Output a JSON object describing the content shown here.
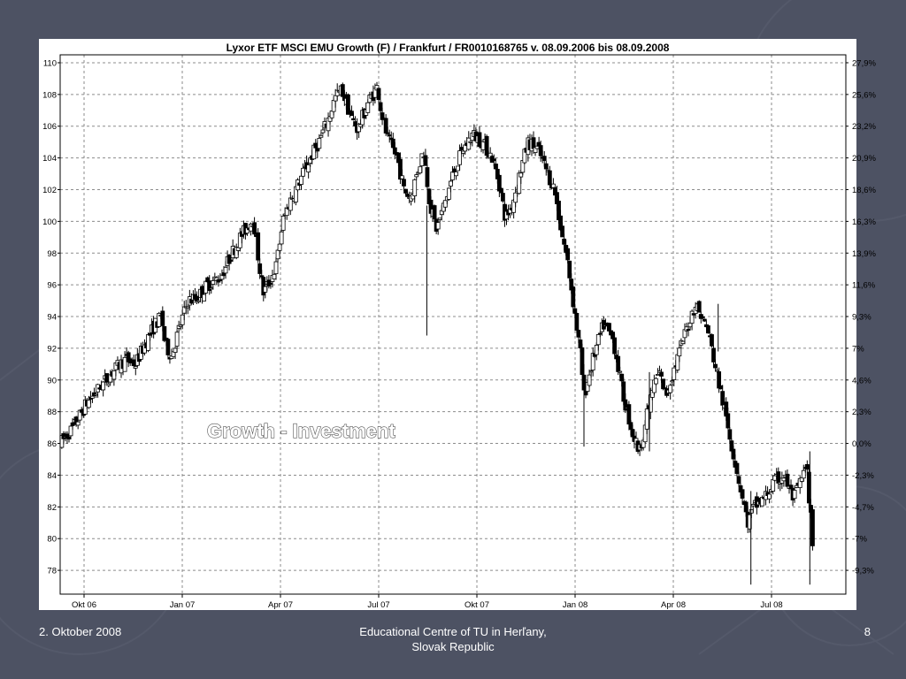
{
  "slide": {
    "footer_date": "2. Oktober 2008",
    "footer_center_line1": "Educational Centre of TU in Herľany,",
    "footer_center_line2": "Slovak Republic",
    "page_number": "8",
    "background_color": "#4d5263",
    "decoration": "faint arrow-and-circle pattern on the slide background"
  },
  "chart_data": {
    "type": "candlestick",
    "title": "Lyxor ETF MSCI EMU Growth (F) / Frankfurt / FR0010168765 v. 08.09.2006 bis 08.09.2008",
    "overlay_text": "Growth - Investment",
    "x_tick_labels": [
      "Okt 06",
      "Jan 07",
      "Apr 07",
      "Jul 07",
      "Okt 07",
      "Jan 08",
      "Apr 08",
      "Jul 08"
    ],
    "x_ticks_months_from_start": [
      0.73,
      3.73,
      6.73,
      9.73,
      12.73,
      15.73,
      18.73,
      21.73
    ],
    "x_range_months": [
      0,
      24
    ],
    "y_left_ticks": [
      110,
      108,
      106,
      104,
      102,
      100,
      98,
      96,
      94,
      92,
      90,
      88,
      86,
      84,
      82,
      80,
      78
    ],
    "y_left_range": [
      76.5,
      110.5
    ],
    "y_right_ticks": [
      "27,9%",
      "25,6%",
      "23,2%",
      "20,9%",
      "18,6%",
      "16,3%",
      "13,9%",
      "11,6%",
      "9,3%",
      "7%",
      "4,6%",
      "2,3%",
      "0,0%",
      "-2,3%",
      "-4,7%",
      "-7%",
      "-9,3%"
    ],
    "grid": true,
    "up_color": "#ffffff",
    "down_color": "#000000",
    "price_path": [
      [
        0.0,
        86.0
      ],
      [
        0.4,
        87.0
      ],
      [
        0.8,
        88.5
      ],
      [
        1.2,
        89.5
      ],
      [
        1.6,
        90.5
      ],
      [
        2.0,
        91.3
      ],
      [
        2.3,
        91.0
      ],
      [
        2.6,
        92.3
      ],
      [
        2.9,
        93.5
      ],
      [
        3.1,
        94.0
      ],
      [
        3.2,
        92.3
      ],
      [
        3.4,
        91.5
      ],
      [
        3.6,
        93.0
      ],
      [
        3.9,
        95.0
      ],
      [
        4.2,
        95.2
      ],
      [
        4.5,
        96.0
      ],
      [
        4.9,
        96.5
      ],
      [
        5.2,
        97.8
      ],
      [
        5.5,
        99.0
      ],
      [
        5.9,
        100.2
      ],
      [
        6.0,
        98.5
      ],
      [
        6.2,
        95.5
      ],
      [
        6.4,
        96.2
      ],
      [
        6.6,
        97.2
      ],
      [
        6.8,
        100.0
      ],
      [
        7.0,
        101.2
      ],
      [
        7.3,
        102.5
      ],
      [
        7.6,
        103.8
      ],
      [
        7.9,
        105.0
      ],
      [
        8.2,
        106.5
      ],
      [
        8.4,
        107.8
      ],
      [
        8.6,
        108.3
      ],
      [
        8.9,
        106.5
      ],
      [
        9.1,
        105.8
      ],
      [
        9.4,
        107.5
      ],
      [
        9.7,
        108.5
      ],
      [
        9.8,
        107.0
      ],
      [
        10.0,
        105.2
      ],
      [
        10.3,
        104.0
      ],
      [
        10.5,
        102.0
      ],
      [
        10.7,
        101.5
      ],
      [
        10.9,
        103.0
      ],
      [
        11.1,
        104.5
      ],
      [
        11.3,
        101.0
      ],
      [
        11.5,
        99.5
      ],
      [
        11.8,
        101.5
      ],
      [
        12.0,
        103.0
      ],
      [
        12.3,
        104.5
      ],
      [
        12.6,
        105.5
      ],
      [
        12.9,
        105.0
      ],
      [
        13.2,
        104.0
      ],
      [
        13.4,
        102.5
      ],
      [
        13.6,
        100.2
      ],
      [
        13.8,
        101.0
      ],
      [
        14.1,
        103.5
      ],
      [
        14.3,
        105.0
      ],
      [
        14.6,
        104.5
      ],
      [
        14.9,
        103.0
      ],
      [
        15.1,
        102.0
      ],
      [
        15.3,
        99.5
      ],
      [
        15.5,
        97.5
      ],
      [
        15.7,
        94.5
      ],
      [
        15.9,
        91.5
      ],
      [
        16.0,
        89.0
      ],
      [
        16.3,
        91.5
      ],
      [
        16.6,
        93.5
      ],
      [
        16.9,
        92.5
      ],
      [
        17.2,
        89.0
      ],
      [
        17.5,
        86.5
      ],
      [
        17.7,
        85.5
      ],
      [
        17.9,
        87.5
      ],
      [
        18.1,
        89.5
      ],
      [
        18.3,
        90.5
      ],
      [
        18.5,
        89.0
      ],
      [
        18.8,
        91.0
      ],
      [
        19.1,
        93.0
      ],
      [
        19.4,
        94.8
      ],
      [
        19.6,
        94.0
      ],
      [
        19.8,
        93.0
      ],
      [
        20.1,
        90.0
      ],
      [
        20.4,
        87.0
      ],
      [
        20.6,
        85.0
      ],
      [
        20.8,
        83.0
      ],
      [
        21.0,
        81.0
      ],
      [
        21.2,
        82.0
      ],
      [
        21.5,
        82.5
      ],
      [
        21.8,
        83.5
      ],
      [
        22.1,
        84.0
      ],
      [
        22.4,
        82.5
      ],
      [
        22.6,
        83.5
      ],
      [
        22.8,
        84.5
      ],
      [
        23.0,
        79.5
      ]
    ],
    "extreme_wicks": [
      [
        11.2,
        92.8,
        101.0
      ],
      [
        16.0,
        85.8,
        91.0
      ],
      [
        18.0,
        85.5,
        90.5
      ],
      [
        20.1,
        91.8,
        94.8
      ],
      [
        21.1,
        77.1,
        83.0
      ],
      [
        22.9,
        77.1,
        85.5
      ]
    ]
  }
}
